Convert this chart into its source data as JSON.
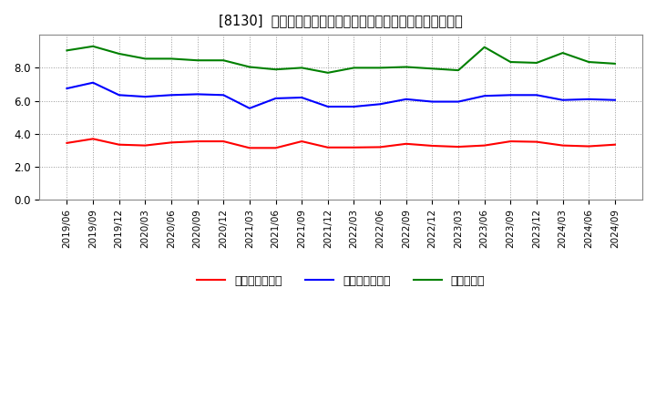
{
  "title": "[8130]  売上債権回転率、買入債務回転率、在庫回転率の推移",
  "x_labels": [
    "2019/06",
    "2019/09",
    "2019/12",
    "2020/03",
    "2020/06",
    "2020/09",
    "2020/12",
    "2021/03",
    "2021/06",
    "2021/09",
    "2021/12",
    "2022/03",
    "2022/06",
    "2022/09",
    "2022/12",
    "2023/03",
    "2023/06",
    "2023/09",
    "2023/12",
    "2024/03",
    "2024/06",
    "2024/09"
  ],
  "receivables_turnover": [
    3.45,
    3.7,
    3.35,
    3.3,
    3.48,
    3.55,
    3.55,
    3.15,
    3.15,
    3.55,
    3.18,
    3.18,
    3.2,
    3.4,
    3.28,
    3.22,
    3.3,
    3.55,
    3.52,
    3.3,
    3.25,
    3.35
  ],
  "payables_turnover": [
    6.75,
    7.1,
    6.35,
    6.25,
    6.35,
    6.4,
    6.35,
    5.55,
    6.15,
    6.2,
    5.65,
    5.65,
    5.8,
    6.1,
    5.95,
    5.95,
    6.3,
    6.35,
    6.35,
    6.05,
    6.1,
    6.05
  ],
  "inventory_turnover": [
    9.05,
    9.3,
    8.85,
    8.55,
    8.55,
    8.45,
    8.45,
    8.05,
    7.9,
    8.0,
    7.7,
    8.0,
    8.0,
    8.05,
    7.95,
    7.85,
    9.25,
    8.35,
    8.3,
    8.9,
    8.35,
    8.25
  ],
  "color_receivables": "#ff0000",
  "color_payables": "#0000ff",
  "color_inventory": "#008000",
  "ylim": [
    0.0,
    10.0
  ],
  "yticks": [
    0.0,
    2.0,
    4.0,
    6.0,
    8.0
  ],
  "background_color": "#ffffff",
  "plot_bg_color": "#ffffff",
  "grid_color": "#999999",
  "legend_receivables": "売上債権回転率",
  "legend_payables": "買入債務回転率",
  "legend_inventory": "在庫回転率"
}
